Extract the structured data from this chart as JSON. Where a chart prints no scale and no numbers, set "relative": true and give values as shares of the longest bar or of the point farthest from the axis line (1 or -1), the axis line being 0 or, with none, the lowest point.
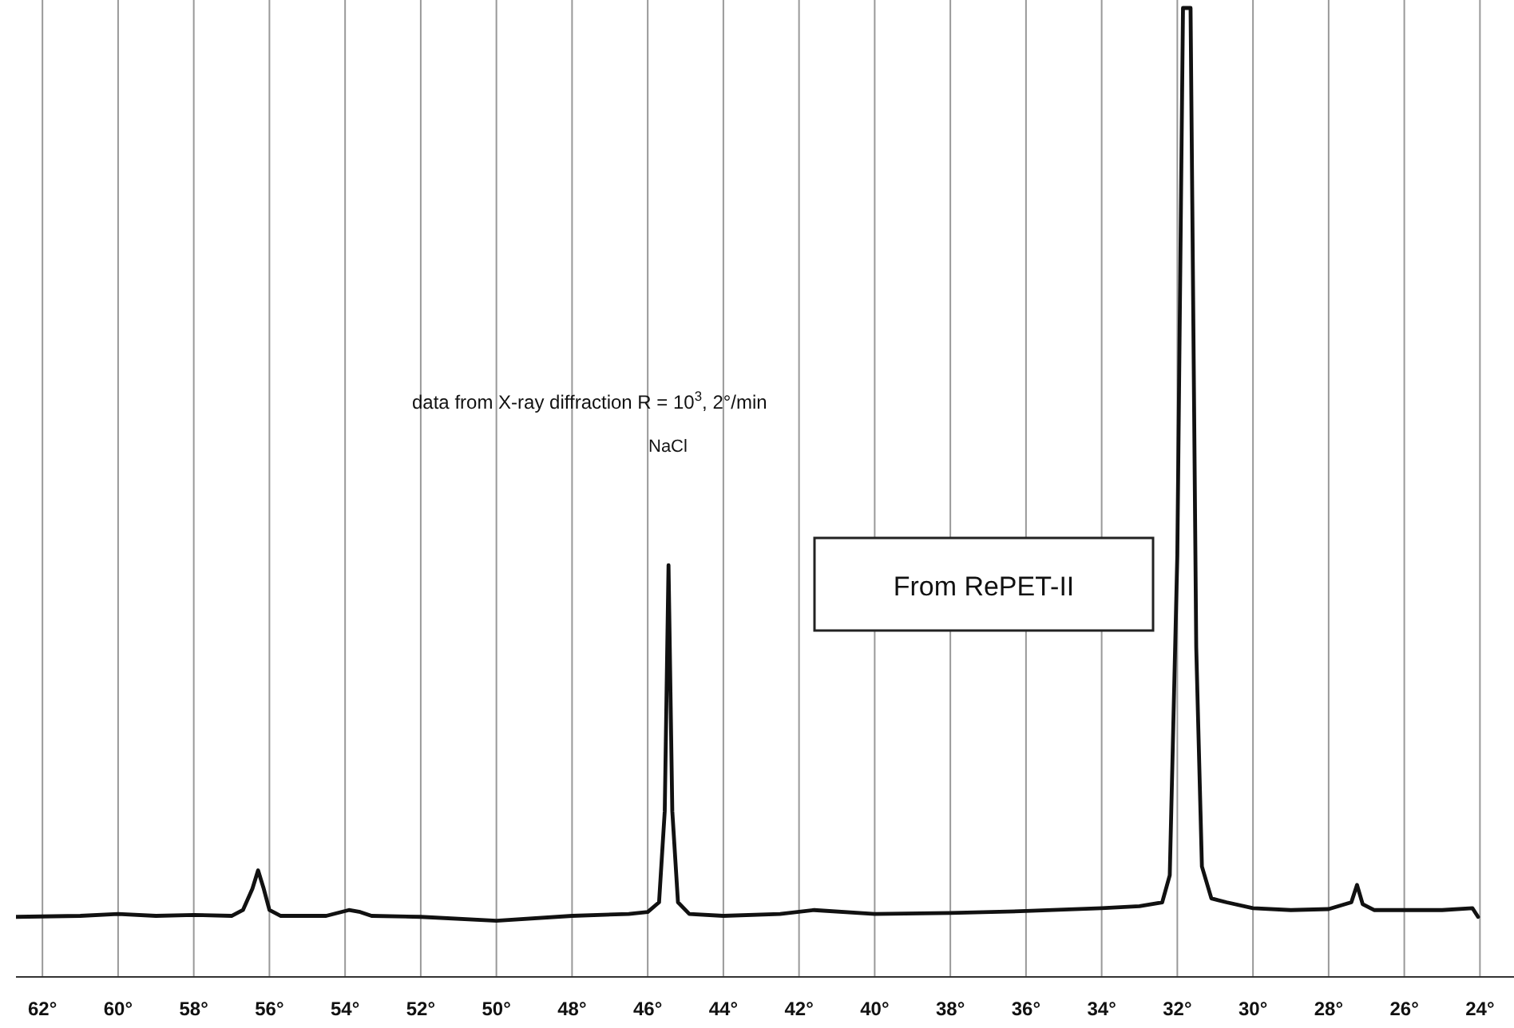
{
  "chart_data": {
    "type": "line",
    "relative": true,
    "grid": "x",
    "marker": "none",
    "line_style": "solid",
    "annotations": [
      "data from X-ray diffraction R = 10$^{3}$, 2°/min",
      "NaCl",
      "From RePET-II"
    ],
    "xlim": [
      62.7,
      23.1
    ],
    "xticks": [
      {
        "value": 62,
        "label": "62°"
      },
      {
        "value": 60,
        "label": "60°"
      },
      {
        "value": 58,
        "label": "58°"
      },
      {
        "value": 56,
        "label": "56°"
      },
      {
        "value": 54,
        "label": "54°"
      },
      {
        "value": 52,
        "label": "52°"
      },
      {
        "value": 50,
        "label": "50°"
      },
      {
        "value": 48,
        "label": "48°"
      },
      {
        "value": 46,
        "label": "46°"
      },
      {
        "value": 44,
        "label": "44°"
      },
      {
        "value": 42,
        "label": "42°"
      },
      {
        "value": 40,
        "label": "40°"
      },
      {
        "value": 38,
        "label": "38°"
      },
      {
        "value": 36,
        "label": "36°"
      },
      {
        "value": 34,
        "label": "34°"
      },
      {
        "value": 32,
        "label": "32°"
      },
      {
        "value": 30,
        "label": "30°"
      },
      {
        "value": 28,
        "label": "28°"
      },
      {
        "value": 26,
        "label": "26°"
      },
      {
        "value": 24,
        "label": "24°"
      }
    ],
    "x": [
      62.7,
      61,
      60,
      59,
      58,
      57,
      56.7,
      56.45,
      56.3,
      56.15,
      56.0,
      55.7,
      54.5,
      53.9,
      53.6,
      53.3,
      52,
      50,
      48,
      46.5,
      46.0,
      45.7,
      45.55,
      45.45,
      45.35,
      45.2,
      44.9,
      44,
      42.5,
      41.6,
      40,
      38,
      36,
      34,
      33,
      32.4,
      32.2,
      32.0,
      31.85,
      31.65,
      31.5,
      31.35,
      31.1,
      30.7,
      30.0,
      29,
      28,
      27.4,
      27.25,
      27.1,
      26.8,
      26,
      25,
      24.2,
      24.05
    ],
    "series": [
      {
        "color": "#111111",
        "values": [
          0.062,
          0.063,
          0.065,
          0.063,
          0.064,
          0.063,
          0.069,
          0.091,
          0.11,
          0.091,
          0.069,
          0.063,
          0.063,
          0.069,
          0.067,
          0.063,
          0.062,
          0.058,
          0.063,
          0.065,
          0.067,
          0.077,
          0.171,
          0.425,
          0.171,
          0.077,
          0.065,
          0.063,
          0.065,
          0.069,
          0.065,
          0.066,
          0.068,
          0.071,
          0.073,
          0.077,
          0.105,
          0.435,
          1,
          1,
          0.34,
          0.114,
          0.081,
          0.077,
          0.071,
          0.069,
          0.07,
          0.077,
          0.095,
          0.075,
          0.069,
          0.069,
          0.069,
          0.071,
          0.062
        ]
      }
    ]
  }
}
